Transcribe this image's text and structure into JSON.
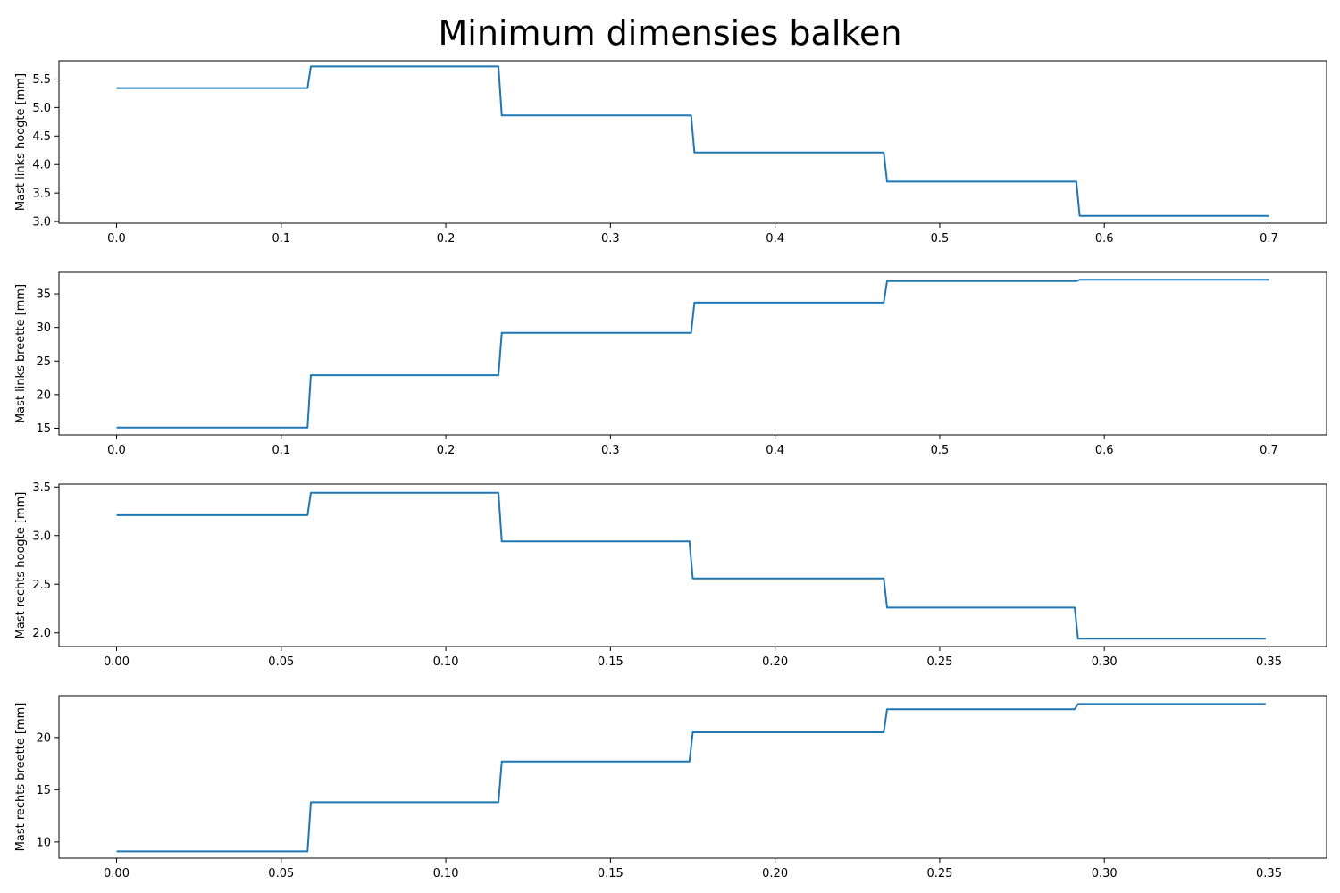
{
  "figure": {
    "suptitle": "Minimum dimensies balken"
  },
  "style": {
    "line_color": "#1f77b4",
    "axes_color": "#000000",
    "background": "#ffffff"
  },
  "chart_data": [
    {
      "type": "line",
      "ylabel": "Mast links hoogte [mm]",
      "xlim": [
        -0.035,
        0.735
      ],
      "ylim": [
        2.97,
        5.82
      ],
      "xticks": [
        0.0,
        0.1,
        0.2,
        0.3,
        0.4,
        0.5,
        0.6,
        0.7
      ],
      "xtick_labels": [
        "0.0",
        "0.1",
        "0.2",
        "0.3",
        "0.4",
        "0.5",
        "0.6",
        "0.7"
      ],
      "yticks": [
        3.0,
        3.5,
        4.0,
        4.5,
        5.0,
        5.5
      ],
      "ytick_labels": [
        "3.0",
        "3.5",
        "4.0",
        "4.5",
        "5.0",
        "5.5"
      ],
      "grid": false,
      "legend": "none",
      "series": [
        {
          "x": [
            0.0,
            0.116,
            0.118,
            0.232,
            0.234,
            0.349,
            0.351,
            0.466,
            0.468,
            0.583,
            0.585,
            0.7
          ],
          "y": [
            5.34,
            5.34,
            5.72,
            5.72,
            4.86,
            4.86,
            4.21,
            4.21,
            3.7,
            3.7,
            3.1,
            3.1
          ]
        }
      ]
    },
    {
      "type": "line",
      "ylabel": "Mast links breette [mm]",
      "xlim": [
        -0.035,
        0.735
      ],
      "ylim": [
        14.0,
        38.2
      ],
      "xticks": [
        0.0,
        0.1,
        0.2,
        0.3,
        0.4,
        0.5,
        0.6,
        0.7
      ],
      "xtick_labels": [
        "0.0",
        "0.1",
        "0.2",
        "0.3",
        "0.4",
        "0.5",
        "0.6",
        "0.7"
      ],
      "yticks": [
        15,
        20,
        25,
        30,
        35
      ],
      "ytick_labels": [
        "15",
        "20",
        "25",
        "30",
        "35"
      ],
      "grid": false,
      "legend": "none",
      "series": [
        {
          "x": [
            0.0,
            0.116,
            0.118,
            0.232,
            0.234,
            0.349,
            0.351,
            0.466,
            0.468,
            0.583,
            0.585,
            0.7
          ],
          "y": [
            15.1,
            15.1,
            22.9,
            22.9,
            29.2,
            29.2,
            33.7,
            33.7,
            36.9,
            36.9,
            37.1,
            37.1
          ]
        }
      ]
    },
    {
      "type": "line",
      "ylabel": "Mast rechts hoogte [mm]",
      "xlim": [
        -0.0175,
        0.3675
      ],
      "ylim": [
        1.86,
        3.53
      ],
      "xticks": [
        0.0,
        0.05,
        0.1,
        0.15,
        0.2,
        0.25,
        0.3,
        0.35
      ],
      "xtick_labels": [
        "0.00",
        "0.05",
        "0.10",
        "0.15",
        "0.20",
        "0.25",
        "0.30",
        "0.35"
      ],
      "yticks": [
        2.0,
        2.5,
        3.0,
        3.5
      ],
      "ytick_labels": [
        "2.0",
        "2.5",
        "3.0",
        "3.5"
      ],
      "grid": false,
      "legend": "none",
      "series": [
        {
          "x": [
            0.0,
            0.058,
            0.059,
            0.116,
            0.117,
            0.174,
            0.175,
            0.233,
            0.234,
            0.291,
            0.292,
            0.349
          ],
          "y": [
            3.21,
            3.21,
            3.44,
            3.44,
            2.94,
            2.94,
            2.56,
            2.56,
            2.26,
            2.26,
            1.94,
            1.94
          ]
        }
      ]
    },
    {
      "type": "line",
      "ylabel": "Mast rechts breette [mm]",
      "xlim": [
        -0.0175,
        0.3675
      ],
      "ylim": [
        8.45,
        24.0
      ],
      "xticks": [
        0.0,
        0.05,
        0.1,
        0.15,
        0.2,
        0.25,
        0.3,
        0.35
      ],
      "xtick_labels": [
        "0.00",
        "0.05",
        "0.10",
        "0.15",
        "0.20",
        "0.25",
        "0.30",
        "0.35"
      ],
      "yticks": [
        10,
        15,
        20
      ],
      "ytick_labels": [
        "10",
        "15",
        "20"
      ],
      "grid": false,
      "legend": "none",
      "series": [
        {
          "x": [
            0.0,
            0.058,
            0.059,
            0.116,
            0.117,
            0.174,
            0.175,
            0.233,
            0.234,
            0.291,
            0.292,
            0.349
          ],
          "y": [
            9.1,
            9.1,
            13.8,
            13.8,
            17.7,
            17.7,
            20.5,
            20.5,
            22.7,
            22.7,
            23.2,
            23.2
          ]
        }
      ]
    }
  ]
}
